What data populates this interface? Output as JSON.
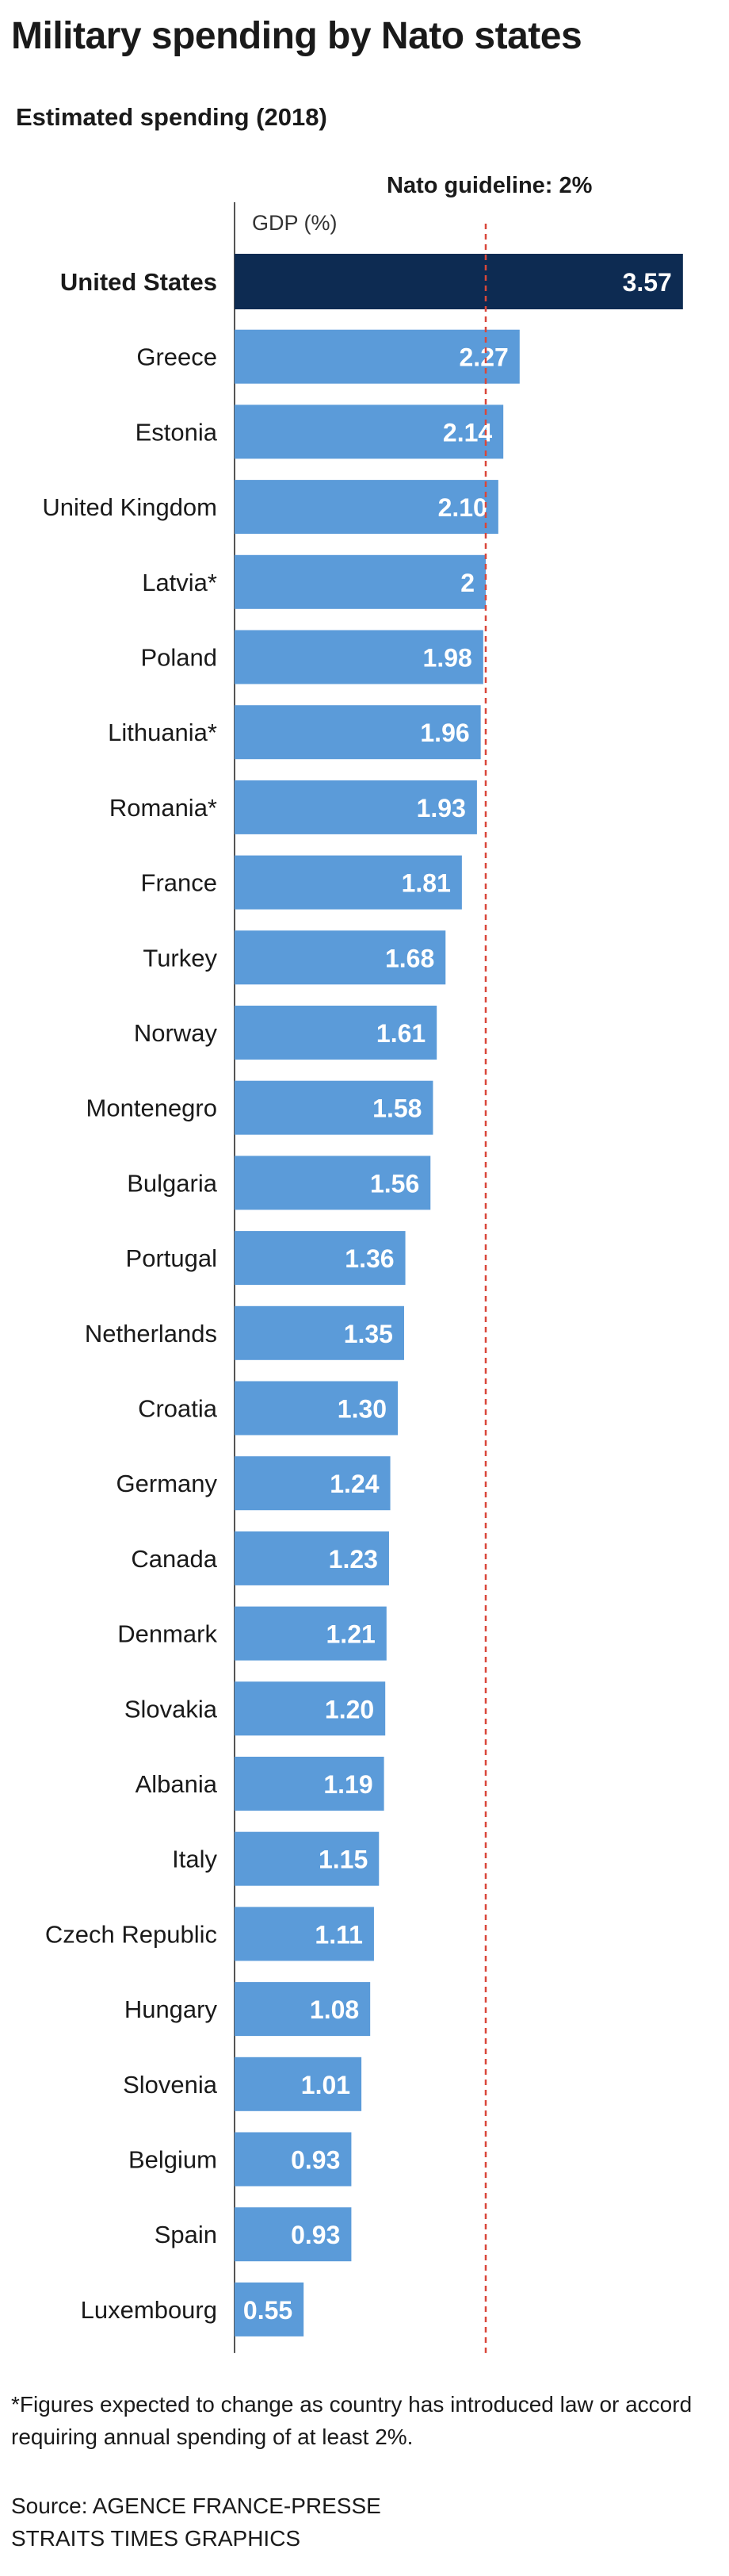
{
  "title": "Military spending by Nato states",
  "subtitle": "Estimated spending (2018)",
  "guideline_label": "Nato guideline: 2%",
  "unit_label": "GDP (%)",
  "footnote": "*Figures expected to change as country has introduced law or accord requiring annual spending of at least 2%.",
  "source_line1": "Source: AGENCE FRANCE-PRESSE",
  "source_line2": "STRAITS TIMES GRAPHICS",
  "colors": {
    "highlight_bar": "#0d2b52",
    "bar": "#5b9bd9",
    "guideline": "#d9473a",
    "axis": "#555555",
    "bar_label": "#ffffff"
  },
  "chart_data": {
    "type": "bar",
    "orientation": "horizontal",
    "highlighted_category": "United States",
    "guideline_value": 2,
    "xlim": [
      0,
      3.57
    ],
    "categories": [
      "United States",
      "Greece",
      "Estonia",
      "United Kingdom",
      "Latvia*",
      "Poland",
      "Lithuania*",
      "Romania*",
      "France",
      "Turkey",
      "Norway",
      "Montenegro",
      "Bulgaria",
      "Portugal",
      "Netherlands",
      "Croatia",
      "Germany",
      "Canada",
      "Denmark",
      "Slovakia",
      "Albania",
      "Italy",
      "Czech Republic",
      "Hungary",
      "Slovenia",
      "Belgium",
      "Spain",
      "Luxembourg"
    ],
    "values": [
      3.57,
      2.27,
      2.14,
      2.1,
      2,
      1.98,
      1.96,
      1.93,
      1.81,
      1.68,
      1.61,
      1.58,
      1.56,
      1.36,
      1.35,
      1.3,
      1.24,
      1.23,
      1.21,
      1.2,
      1.19,
      1.15,
      1.11,
      1.08,
      1.01,
      0.93,
      0.93,
      0.55
    ],
    "value_labels": [
      "3.57",
      "2.27",
      "2.14",
      "2.10",
      "2",
      "1.98",
      "1.96",
      "1.93",
      "1.81",
      "1.68",
      "1.61",
      "1.58",
      "1.56",
      "1.36",
      "1.35",
      "1.30",
      "1.24",
      "1.23",
      "1.21",
      "1.20",
      "1.19",
      "1.15",
      "1.11",
      "1.08",
      "1.01",
      "0.93",
      "0.93",
      "0.55"
    ]
  }
}
